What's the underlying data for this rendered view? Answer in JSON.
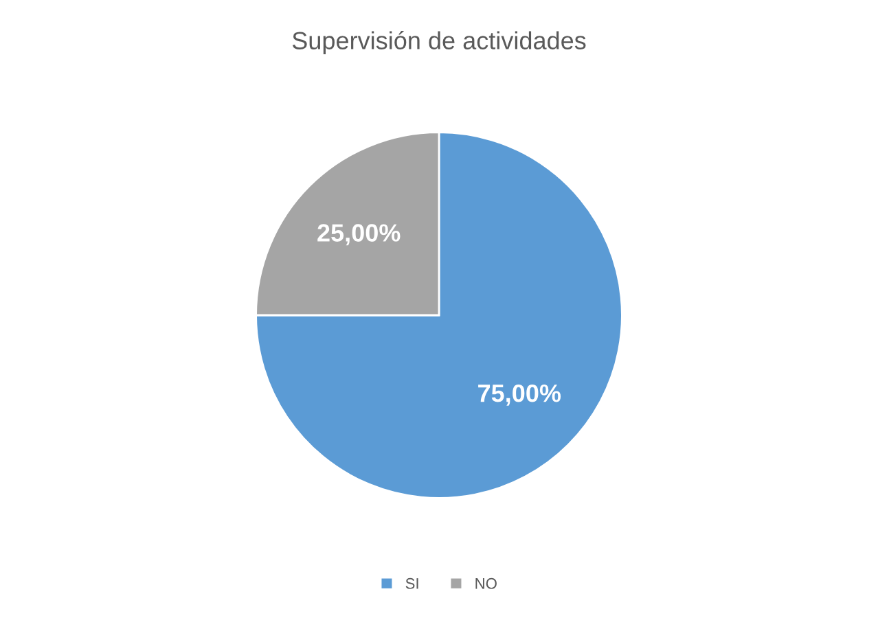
{
  "chart_data": {
    "type": "pie",
    "title": "Supervisión de actividades",
    "categories": [
      "SI",
      "NO"
    ],
    "values": [
      75,
      25
    ],
    "colors": [
      "#5b9bd5",
      "#a5a5a5"
    ],
    "value_labels": [
      "75,00%",
      "25,00%"
    ],
    "legend": "bottom"
  }
}
